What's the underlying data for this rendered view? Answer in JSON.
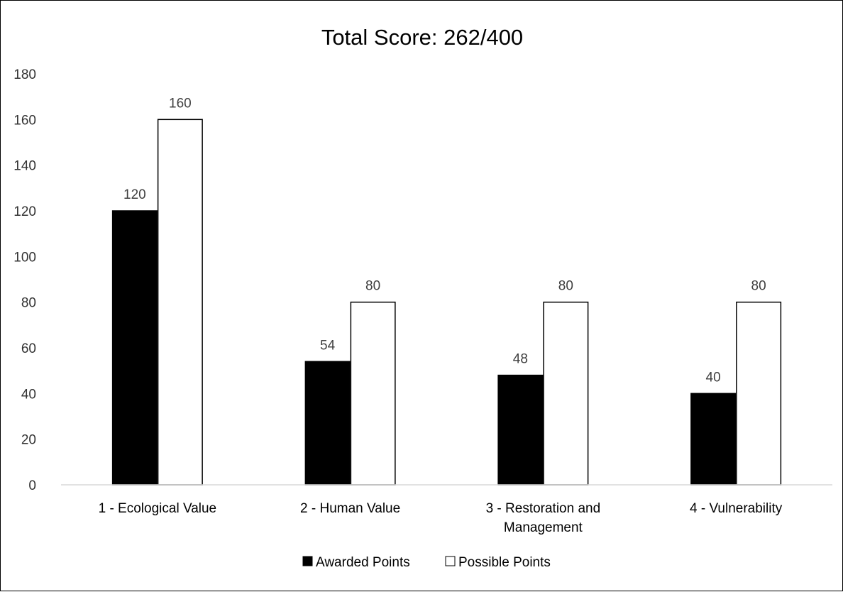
{
  "chart_data": {
    "type": "bar",
    "title": "Total Score: 262/400",
    "xlabel": "",
    "ylabel": "",
    "ylim": [
      0,
      180
    ],
    "yticks": [
      0,
      20,
      40,
      60,
      80,
      100,
      120,
      140,
      160,
      180
    ],
    "grid": false,
    "legend_position": "bottom",
    "categories": [
      [
        "1 - Ecological Value"
      ],
      [
        "2 - Human Value"
      ],
      [
        "3 - Restoration and",
        "Management"
      ],
      [
        "4 - Vulnerability"
      ]
    ],
    "series": [
      {
        "name": "Awarded Points",
        "values": [
          120,
          54,
          48,
          40
        ],
        "fill": "#000000",
        "stroke": "#000000"
      },
      {
        "name": "Possible Points",
        "values": [
          160,
          80,
          80,
          80
        ],
        "fill": "#ffffff",
        "stroke": "#000000"
      }
    ]
  }
}
